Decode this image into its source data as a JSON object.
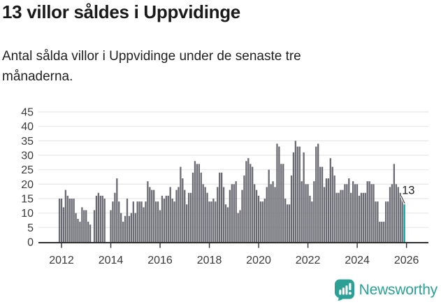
{
  "header": {
    "title": "13 villor såldes i Uppvidinge",
    "subtitle": "Antal sålda villor i Uppvidinge under de senaste tre månaderna."
  },
  "chart_data": {
    "type": "bar",
    "title": "13 villor såldes i Uppvidinge",
    "subtitle": "Antal sålda villor i Uppvidinge under de senaste tre månaderna.",
    "frequency": "monthly",
    "x_start": "2011-12",
    "x_end": "2025-12",
    "values": [
      15,
      15,
      12,
      18,
      16,
      15,
      15,
      15,
      10,
      8,
      7,
      12,
      11,
      11,
      7,
      6,
      0,
      11,
      16,
      17,
      16,
      16,
      15,
      0,
      0,
      11,
      14,
      17,
      22,
      14,
      10,
      7,
      9,
      15,
      9,
      10,
      14,
      10,
      14,
      14,
      14,
      12,
      14,
      21,
      19,
      18,
      18,
      14,
      14,
      11,
      16,
      15,
      16,
      16,
      19,
      15,
      14,
      18,
      19,
      26,
      22,
      18,
      13,
      17,
      17,
      24,
      28,
      27,
      27,
      24,
      20,
      19,
      17,
      14,
      14,
      15,
      14,
      19,
      24,
      24,
      19,
      13,
      12,
      18,
      20,
      20,
      21,
      10,
      11,
      18,
      23,
      28,
      29,
      27,
      26,
      20,
      18,
      16,
      14,
      14,
      15,
      19,
      25,
      20,
      21,
      19,
      34,
      33,
      27,
      27,
      15,
      13,
      13,
      23,
      31,
      35,
      33,
      33,
      21,
      31,
      20,
      20,
      16,
      14,
      21,
      33,
      34,
      26,
      26,
      19,
      22,
      22,
      29,
      26,
      23,
      17,
      17,
      18,
      18,
      20,
      20,
      22,
      17,
      21,
      20,
      20,
      16,
      17,
      17,
      17,
      21,
      21,
      20,
      20,
      14,
      14,
      7,
      7,
      7,
      14,
      14,
      19,
      20,
      27,
      20,
      19,
      17,
      15,
      13
    ],
    "last_value": 13,
    "annotation_label": "13",
    "yticks": [
      45,
      40,
      35,
      30,
      25,
      20,
      15,
      10,
      5,
      0
    ],
    "ylim": [
      0,
      46
    ],
    "xtick_years": [
      2012,
      2014,
      2016,
      2018,
      2020,
      2022,
      2024,
      2026
    ],
    "grid": "horizontal",
    "legend": "none",
    "colors": {
      "bar": "#6a6a73",
      "highlight": "#00a29b",
      "axis": "#2f2f2f",
      "grid": "#e7e7e7",
      "tick_label": "#3a3a3a",
      "annotation": "#222222"
    }
  },
  "footer": {
    "brand": "Newsworthy",
    "brand_color": "#2da096",
    "logo_icon": "newsworthy-speech-bubble-barchart-icon"
  }
}
